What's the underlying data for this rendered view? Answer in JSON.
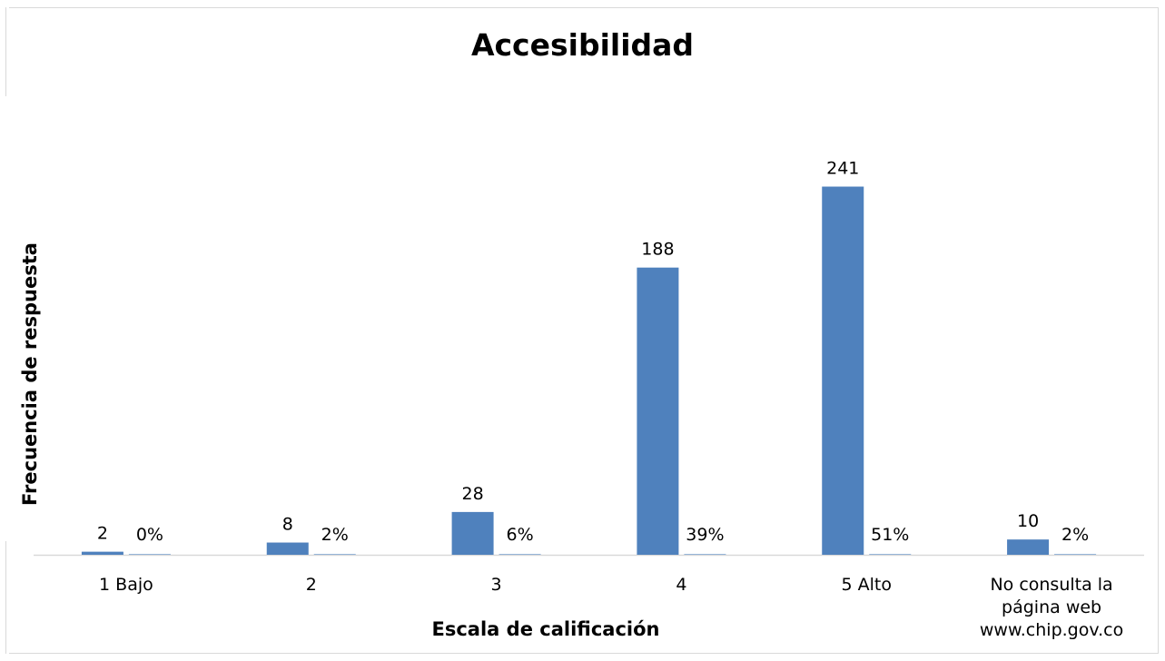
{
  "chart_data": {
    "type": "bar",
    "title": "Accesibilidad",
    "xlabel": "Escala de calificación",
    "ylabel": "Frecuencia de respuesta",
    "categories": [
      "1 Bajo",
      "2",
      "3",
      "4",
      "5 Alto",
      "No consulta la página web www.chip.gov.co"
    ],
    "category_label_lines": [
      [
        "1 Bajo"
      ],
      [
        "2"
      ],
      [
        "3"
      ],
      [
        "4"
      ],
      [
        "5 Alto"
      ],
      [
        "No consulta la",
        "página web",
        "www.chip.gov.co"
      ]
    ],
    "series": [
      {
        "values": [
          2,
          8,
          28,
          188,
          241,
          10
        ],
        "data_labels": [
          "2",
          "8",
          "28",
          "188",
          "241",
          "10"
        ],
        "color": "#4f81bd"
      },
      {
        "values": [
          0.004,
          0.02,
          0.06,
          0.39,
          0.51,
          0.02
        ],
        "data_labels": [
          "0%",
          "2%",
          "6%",
          "39%",
          "51%",
          "2%"
        ],
        "color": "#4f81bd"
      }
    ],
    "ylim": [
      0,
      260
    ],
    "grid": false,
    "legend": "none"
  }
}
